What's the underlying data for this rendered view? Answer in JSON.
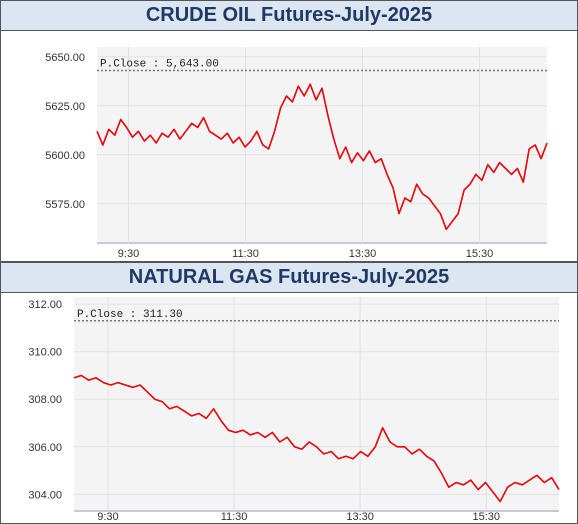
{
  "chart_data": [
    {
      "type": "line",
      "title": "CRUDE OIL Futures-July-2025",
      "pclose_label": "P.Close : 5,643.00",
      "pclose_value": 5643.0,
      "x_ticks": [
        "9:30",
        "11:30",
        "13:30",
        "15:30"
      ],
      "y_ticks": [
        "5650.00",
        "5625.00",
        "5600.00",
        "5575.00"
      ],
      "ylim": [
        5555,
        5655
      ],
      "line_color": "#e8000b",
      "series": [
        {
          "values": [
            5612,
            5605,
            5613,
            5610,
            5618,
            5614,
            5609,
            5612,
            5607,
            5610,
            5606,
            5611,
            5609,
            5613,
            5608,
            5612,
            5616,
            5614,
            5619,
            5612,
            5610,
            5608,
            5611,
            5606,
            5609,
            5604,
            5607,
            5612,
            5605,
            5603,
            5612,
            5624,
            5630,
            5627,
            5635,
            5630,
            5636,
            5628,
            5634,
            5620,
            5608,
            5598,
            5604,
            5596,
            5601,
            5597,
            5602,
            5596,
            5598,
            5590,
            5583,
            5570,
            5578,
            5576,
            5585,
            5580,
            5578,
            5574,
            5570,
            5562,
            5566,
            5570,
            5582,
            5585,
            5590,
            5587,
            5595,
            5591,
            5596,
            5593,
            5590,
            5593,
            5586,
            5603,
            5605,
            5598,
            5606
          ]
        }
      ]
    },
    {
      "type": "line",
      "title": "NATURAL GAS Futures-July-2025",
      "pclose_label": "P.Close : 311.30",
      "pclose_value": 311.3,
      "x_ticks": [
        "9:30",
        "11:30",
        "13:30",
        "15:30"
      ],
      "y_ticks": [
        "312.00",
        "310.00",
        "308.00",
        "306.00",
        "304.00"
      ],
      "ylim": [
        303.3,
        312.3
      ],
      "line_color": "#e8000b",
      "series": [
        {
          "values": [
            308.9,
            309.0,
            308.8,
            308.9,
            308.7,
            308.6,
            308.7,
            308.6,
            308.5,
            308.6,
            308.3,
            308.0,
            307.9,
            307.6,
            307.7,
            307.5,
            307.3,
            307.4,
            307.2,
            307.6,
            307.1,
            306.7,
            306.6,
            306.7,
            306.5,
            306.6,
            306.4,
            306.6,
            306.2,
            306.4,
            306.0,
            305.9,
            306.2,
            306.0,
            305.7,
            305.8,
            305.5,
            305.6,
            305.5,
            305.8,
            305.6,
            306.0,
            306.8,
            306.2,
            306.0,
            306.0,
            305.7,
            305.9,
            305.6,
            305.4,
            304.9,
            304.3,
            304.5,
            304.4,
            304.6,
            304.2,
            304.5,
            304.1,
            303.7,
            304.3,
            304.5,
            304.4,
            304.6,
            304.8,
            304.5,
            304.7,
            304.2
          ]
        }
      ]
    }
  ]
}
